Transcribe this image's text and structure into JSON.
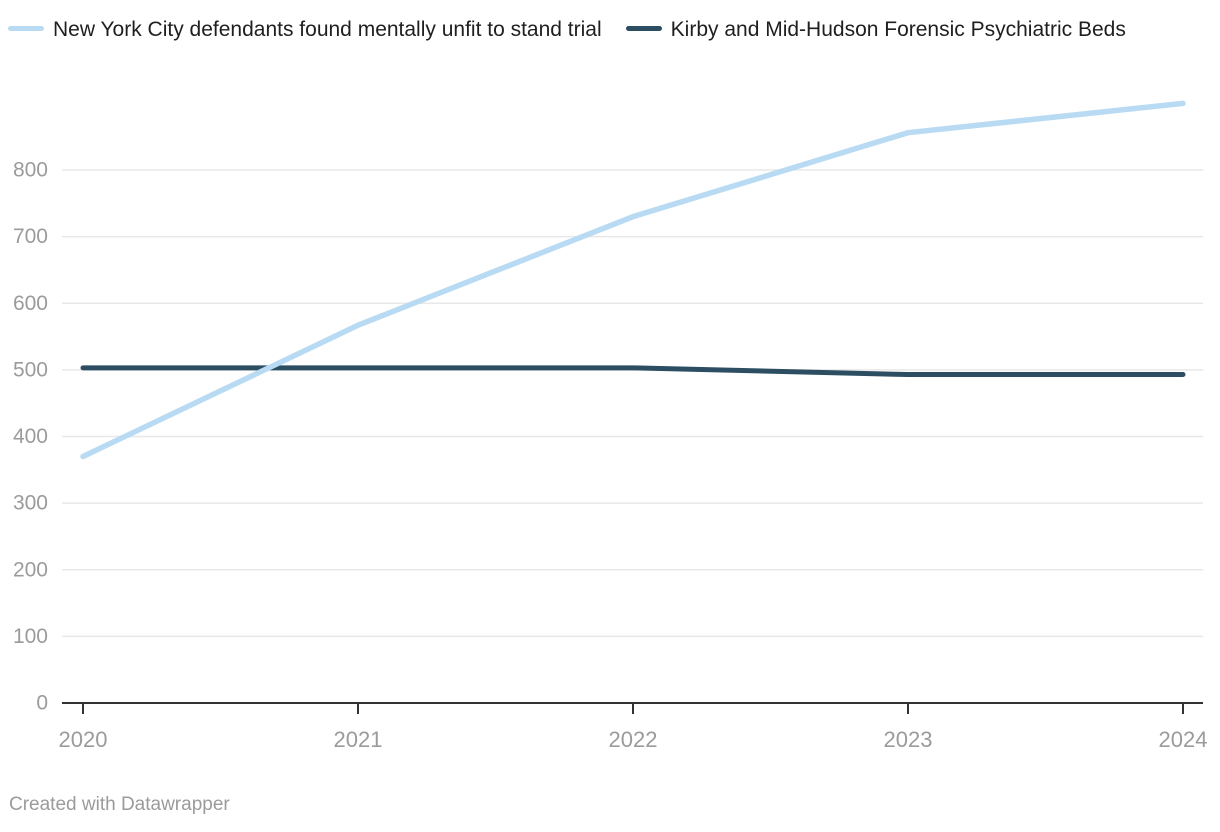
{
  "legend": {
    "items": [
      {
        "label": "New York City defendants found mentally unfit to stand trial",
        "color": "#b8dbf3"
      },
      {
        "label": "Kirby and Mid-Hudson Forensic Psychiatric Beds",
        "color": "#2c4d62"
      }
    ]
  },
  "footer": {
    "credit": "Created with Datawrapper"
  },
  "chart_data": {
    "type": "line",
    "x": [
      2020,
      2021,
      2022,
      2023,
      2024
    ],
    "xticks": [
      "2020",
      "2021",
      "2022",
      "2023",
      "2024"
    ],
    "yticks": [
      0,
      100,
      200,
      300,
      400,
      500,
      600,
      700,
      800
    ],
    "ylim": [
      0,
      920
    ],
    "grid": true,
    "legend_position": "top",
    "series": [
      {
        "name": "New York City defendants found mentally unfit to stand trial",
        "color": "#b8dbf3",
        "values": [
          370,
          567,
          730,
          856,
          900
        ]
      },
      {
        "name": "Kirby and Mid-Hudson Forensic Psychiatric Beds",
        "color": "#2c4d62",
        "values": [
          503,
          503,
          503,
          493,
          493
        ]
      }
    ],
    "style": {
      "grid_color": "#e8e8e8",
      "baseline_color": "#333333",
      "tick_label_color": "#9b9b9b",
      "legend_text_color": "#1f1f1f",
      "background": "#ffffff"
    }
  }
}
